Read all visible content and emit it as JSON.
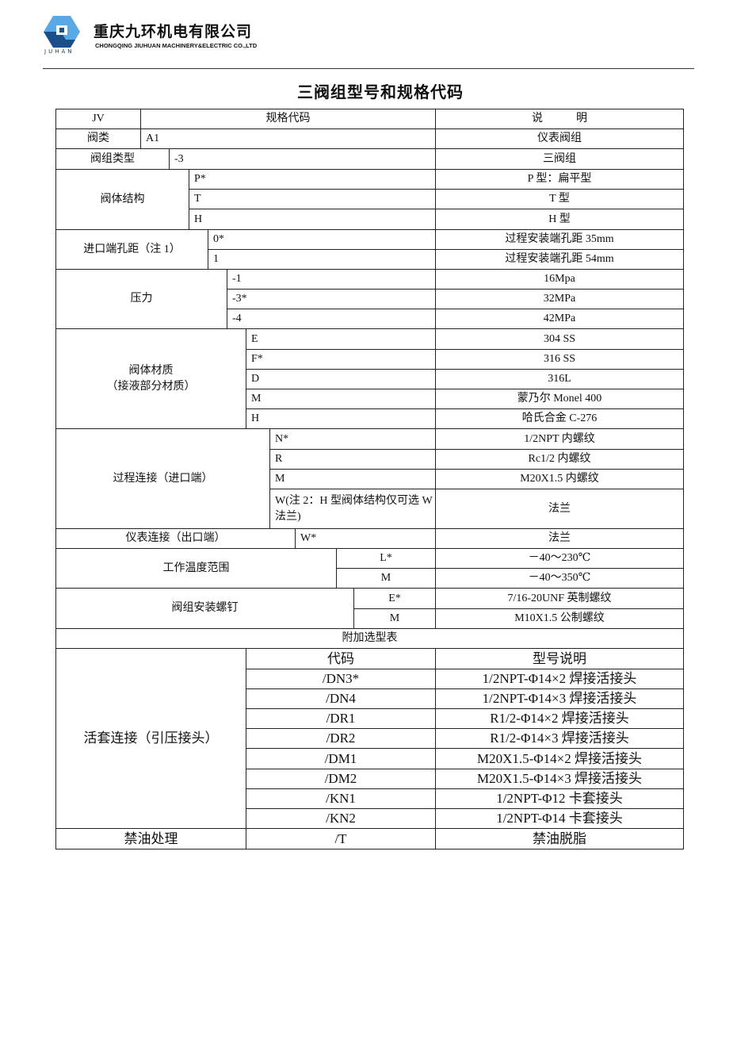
{
  "header": {
    "company_name": "重庆九环机电有限公司",
    "company_name_en": "CHONGQING JIUHUAN MACHINERY&ELECTRIC CO.,LTD",
    "logo_text": "JUHAN",
    "logo_colors": {
      "light": "#5aa8e6",
      "dark": "#1a4f8a"
    }
  },
  "title": "三阀组型号和规格代码",
  "table": {
    "head": {
      "c1": "JV",
      "c2": "规格代码",
      "c3": "说　　　明"
    },
    "groups": [
      {
        "label": "阀类",
        "rows": [
          {
            "code": "A1",
            "desc": "仪表阀组"
          }
        ]
      },
      {
        "label": "阀组类型",
        "rows": [
          {
            "code": "-3",
            "desc": "三阀组"
          }
        ]
      },
      {
        "label": "阀体结构",
        "rows": [
          {
            "code": "P*",
            "desc": "P 型：扁平型"
          },
          {
            "code": "T",
            "desc": "T 型"
          },
          {
            "code": "H",
            "desc": "H 型"
          }
        ]
      },
      {
        "label": "进口端孔距（注 1）",
        "rows": [
          {
            "code": "0*",
            "desc": "过程安装端孔距 35mm"
          },
          {
            "code": "1",
            "desc": "过程安装端孔距 54mm"
          }
        ]
      },
      {
        "label": "压力",
        "rows": [
          {
            "code": "-1",
            "desc": "16Mpa"
          },
          {
            "code": "-3*",
            "desc": "32MPa"
          },
          {
            "code": "-4",
            "desc": "42MPa"
          }
        ]
      },
      {
        "label": "阀体材质\n（接液部分材质）",
        "rows": [
          {
            "code": "E",
            "desc": "304  SS"
          },
          {
            "code": "F*",
            "desc": "316  SS"
          },
          {
            "code": "D",
            "desc": "316L"
          },
          {
            "code": "M",
            "desc": "蒙乃尔 Monel 400"
          },
          {
            "code": "H",
            "desc": "哈氏合金 C-276"
          }
        ]
      },
      {
        "label": "过程连接（进口端）",
        "rows": [
          {
            "code": "N*",
            "desc": "1/2NPT 内螺纹"
          },
          {
            "code": "R",
            "desc": "Rc1/2 内螺纹"
          },
          {
            "code": "M",
            "desc": "M20X1.5 内螺纹"
          },
          {
            "code": "W(注 2：H 型阀体结构仅可选 W 法兰)",
            "desc": "法兰"
          }
        ]
      },
      {
        "label": "仪表连接（出口端）",
        "rows": [
          {
            "code": "W*",
            "desc": "法兰"
          }
        ]
      },
      {
        "label": "工作温度范围",
        "rows": [
          {
            "code": "L*",
            "desc": "－40～230℃"
          },
          {
            "code": "M",
            "desc": "－40～350℃"
          }
        ]
      },
      {
        "label": "阀组安装螺钉",
        "rows": [
          {
            "code": "E*",
            "desc": "7/16-20UNF 英制螺纹"
          },
          {
            "code": "M",
            "desc": "M10X1.5 公制螺纹"
          }
        ]
      }
    ],
    "extra_title": "附加选型表",
    "extra_groups": [
      {
        "label": "活套连接（引压接头）",
        "rows": [
          {
            "code": "代码",
            "desc": "型号说明"
          },
          {
            "code": "/DN3*",
            "desc": "1/2NPT-Φ14×2 焊接活接头"
          },
          {
            "code": "/DN4",
            "desc": "1/2NPT-Φ14×3 焊接活接头"
          },
          {
            "code": "/DR1",
            "desc": "R1/2-Φ14×2 焊接活接头"
          },
          {
            "code": "/DR2",
            "desc": "R1/2-Φ14×3 焊接活接头"
          },
          {
            "code": "/DM1",
            "desc": "M20X1.5-Φ14×2 焊接活接头"
          },
          {
            "code": "/DM2",
            "desc": "M20X1.5-Φ14×3 焊接活接头"
          },
          {
            "code": "/KN1",
            "desc": "1/2NPT-Φ12 卡套接头"
          },
          {
            "code": "/KN2",
            "desc": "1/2NPT-Φ14 卡套接头"
          }
        ]
      },
      {
        "label": "禁油处理",
        "rows": [
          {
            "code": "/T",
            "desc": "禁油脱脂"
          }
        ]
      }
    ]
  }
}
